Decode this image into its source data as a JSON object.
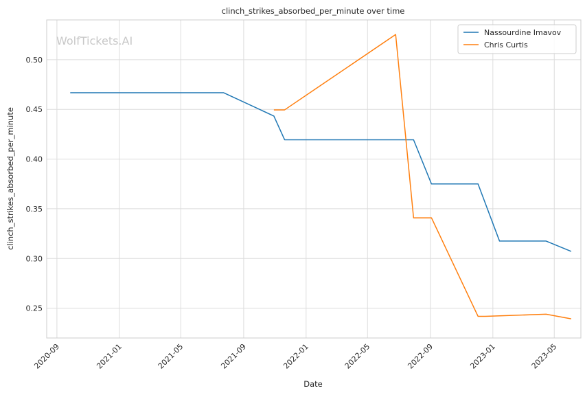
{
  "chart_data": {
    "type": "line",
    "title": "clinch_strikes_absorbed_per_minute over time",
    "xlabel": "Date",
    "ylabel": "clinch_strikes_absorbed_per_minute",
    "watermark": "WolfTickets.AI",
    "x_ticks": [
      "2020-09",
      "2021-01",
      "2021-05",
      "2021-09",
      "2022-01",
      "2022-05",
      "2022-09",
      "2023-01",
      "2023-05"
    ],
    "y_ticks": [
      "0.25",
      "0.30",
      "0.35",
      "0.40",
      "0.45",
      "0.50"
    ],
    "xlim": [
      "2020-08-12",
      "2023-06-22"
    ],
    "ylim": [
      0.22,
      0.54
    ],
    "grid": true,
    "legend_position": "top-right",
    "series": [
      {
        "name": "Nassourdine Imavov",
        "color": "#1f77b4",
        "points": [
          [
            "2020-09-27",
            0.4667
          ],
          [
            "2021-07-24",
            0.4667
          ],
          [
            "2021-10-30",
            0.4433
          ],
          [
            "2021-11-20",
            0.4194
          ],
          [
            "2022-07-30",
            0.4194
          ],
          [
            "2022-09-03",
            0.375
          ],
          [
            "2022-12-03",
            0.375
          ],
          [
            "2023-01-14",
            0.3175
          ],
          [
            "2023-04-15",
            0.3175
          ],
          [
            "2023-06-03",
            0.3071
          ]
        ]
      },
      {
        "name": "Chris Curtis",
        "color": "#ff7f0e",
        "points": [
          [
            "2021-10-30",
            0.4495
          ],
          [
            "2021-11-20",
            0.4495
          ],
          [
            "2022-06-25",
            0.5253
          ],
          [
            "2022-07-30",
            0.3409
          ],
          [
            "2022-09-03",
            0.3409
          ],
          [
            "2022-12-03",
            0.2418
          ],
          [
            "2022-12-17",
            0.2418
          ],
          [
            "2023-04-15",
            0.2439
          ],
          [
            "2023-06-03",
            0.2393
          ]
        ]
      }
    ]
  }
}
